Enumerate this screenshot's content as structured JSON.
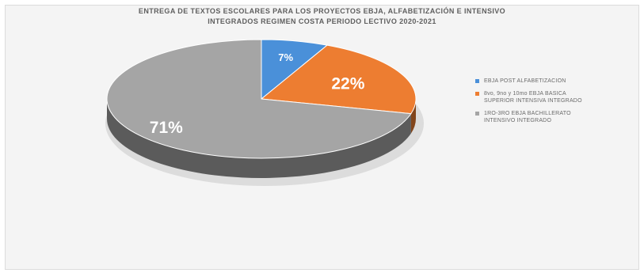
{
  "chart_data": {
    "type": "pie",
    "title_lines": [
      "ENTREGA DE TEXTOS ESCOLARES PARA LOS PROYECTOS EBJA, ALFABETIZACIÓN E INTENSIVO",
      "INTEGRADOS REGIMEN COSTA PERIODO LECTIVO 2020-2021"
    ],
    "slices": [
      {
        "label": "EBJA POST ALFABETIZACION",
        "value": 7,
        "data_label": "7%",
        "color": "#4a90d9"
      },
      {
        "label": "8vo, 9no y 10mo EBJA BASICA\nSUPERIOR INTENSIVA INTEGRADO",
        "value": 22,
        "data_label": "22%",
        "color": "#ed7d31"
      },
      {
        "label": "1RO-3RO EBJA BACHILLERATO\nINTENSIVO INTEGRADO",
        "value": 71,
        "data_label": "71%",
        "color": "#a5a5a5"
      }
    ],
    "legend_position": "right",
    "style": "3d"
  }
}
